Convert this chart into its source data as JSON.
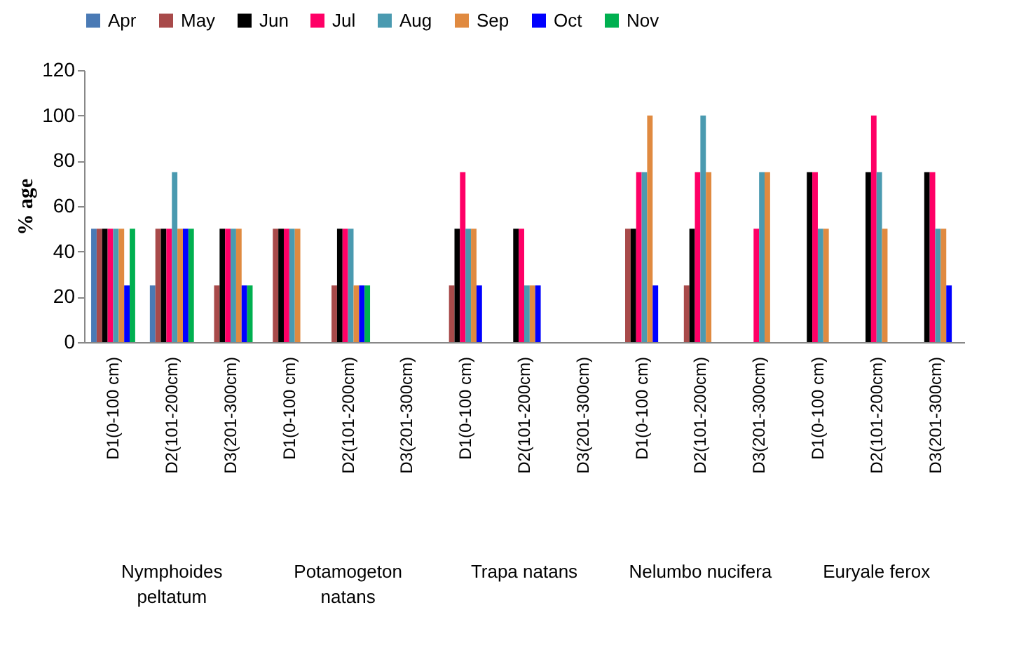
{
  "chart_data": {
    "type": "bar",
    "ylabel": "% age",
    "categories": [
      "D1(0-100 cm)",
      "D2(101-200cm)",
      "D3(201-300cm)",
      "D1(0-100 cm)",
      "D2(101-200cm)",
      "D3(201-300cm)",
      "D1(0-100 cm)",
      "D2(101-200cm)",
      "D3(201-300cm)",
      "D1(0-100 cm)",
      "D2(101-200cm)",
      "D3(201-300cm)",
      "D1(0-100 cm)",
      "D2(101-200cm)",
      "D3(201-300cm)"
    ],
    "series": [
      {
        "name": "Apr",
        "color": "#4a7ab5",
        "values": [
          50,
          25,
          null,
          null,
          null,
          null,
          null,
          null,
          null,
          null,
          null,
          null,
          null,
          null,
          null
        ]
      },
      {
        "name": "May",
        "color": "#a84a4a",
        "values": [
          50,
          50,
          25,
          50,
          25,
          null,
          25,
          null,
          null,
          50,
          25,
          null,
          null,
          null,
          null
        ]
      },
      {
        "name": "Jun",
        "color": "#000000",
        "values": [
          50,
          50,
          50,
          50,
          50,
          null,
          50,
          50,
          null,
          50,
          50,
          null,
          75,
          75,
          75
        ]
      },
      {
        "name": "Jul",
        "color": "#ff0066",
        "values": [
          50,
          50,
          50,
          50,
          50,
          null,
          75,
          50,
          null,
          75,
          75,
          50,
          75,
          100,
          75
        ]
      },
      {
        "name": "Aug",
        "color": "#4a9ab0",
        "values": [
          50,
          75,
          50,
          50,
          50,
          null,
          50,
          25,
          null,
          75,
          100,
          75,
          50,
          75,
          50
        ]
      },
      {
        "name": "Sep",
        "color": "#e08a40",
        "values": [
          50,
          50,
          50,
          50,
          25,
          null,
          50,
          25,
          null,
          100,
          75,
          75,
          50,
          50,
          50
        ]
      },
      {
        "name": "Oct",
        "color": "#0000ff",
        "values": [
          25,
          50,
          25,
          null,
          25,
          null,
          25,
          25,
          null,
          25,
          null,
          null,
          null,
          null,
          25
        ]
      },
      {
        "name": "Nov",
        "color": "#00b050",
        "values": [
          50,
          50,
          25,
          null,
          25,
          null,
          null,
          null,
          null,
          null,
          null,
          null,
          null,
          null,
          null
        ]
      }
    ],
    "ylim": [
      0,
      120
    ],
    "yticks": [
      0,
      20,
      40,
      60,
      80,
      100,
      120
    ],
    "grid": false,
    "legend": "top",
    "annotations": [
      "Nymphoides peltatum",
      "Potamogeton natans",
      "Trapa natans",
      "Nelumbo nucifera",
      "Euryale ferox"
    ]
  }
}
